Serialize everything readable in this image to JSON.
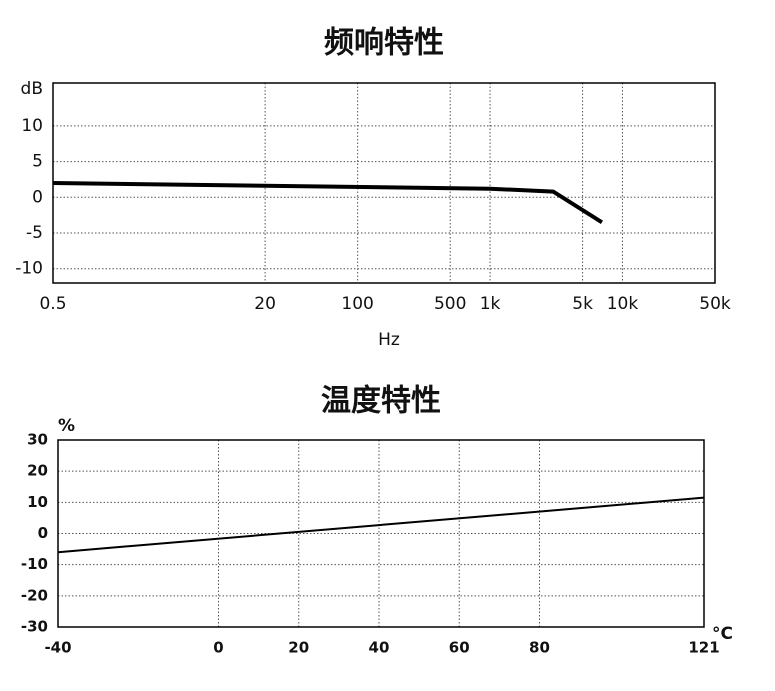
{
  "chart_data": [
    {
      "type": "line",
      "title": "频响特性",
      "y_label": "dB",
      "x_label": "Hz",
      "x_scale": "log",
      "x": [
        0.5,
        1000,
        3000,
        7000
      ],
      "values": [
        2,
        1.2,
        0.8,
        -3.5
      ],
      "color": "#000000",
      "xlim": [
        0.5,
        50000
      ],
      "xticks": [
        0.5,
        20,
        100,
        500,
        {
          "value": 1000,
          "label": "1k"
        },
        {
          "value": 5000,
          "label": "5k"
        },
        {
          "value": 10000,
          "label": "10k"
        },
        {
          "value": 50000,
          "label": "50k"
        }
      ],
      "ylim": [
        -12,
        16
      ],
      "yticks": [
        -10,
        -5,
        0,
        5,
        10
      ],
      "grid": true
    },
    {
      "type": "line",
      "title": "温度特性",
      "y_label": "%",
      "x_label": "°C",
      "x_scale": "linear",
      "x": [
        -40,
        121
      ],
      "values": [
        -6,
        11.5
      ],
      "color": "#000000",
      "xlim": [
        -40,
        121
      ],
      "xticks": [
        -40,
        0,
        20,
        40,
        60,
        80,
        121
      ],
      "ylim": [
        -30,
        30
      ],
      "yticks": [
        -30,
        -20,
        -10,
        0,
        10,
        20,
        30
      ],
      "grid": true
    }
  ]
}
